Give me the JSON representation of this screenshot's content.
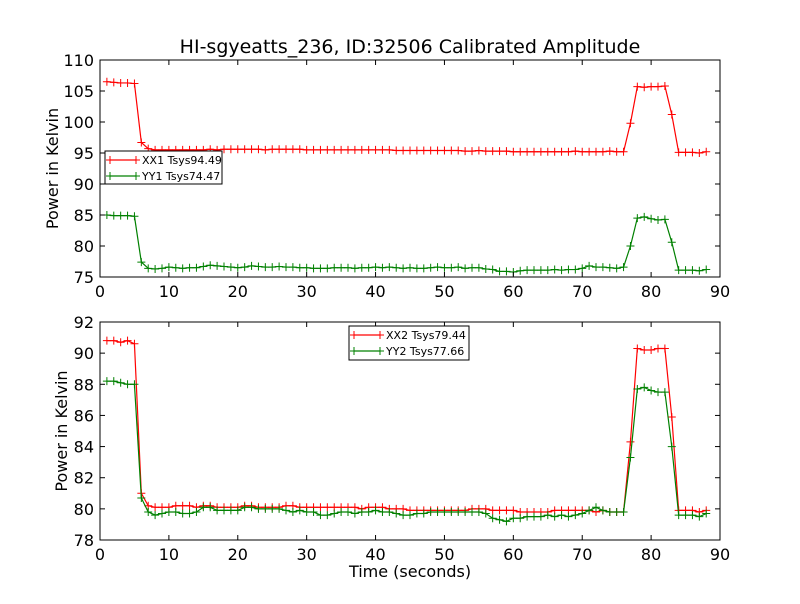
{
  "chart_data": {
    "title": "HI-sgyeatts_236, ID:32506 Calibrated Amplitude",
    "panels": [
      {
        "type": "line",
        "xlim": [
          0,
          90
        ],
        "ylim": [
          75,
          110
        ],
        "xticks": [
          0,
          10,
          20,
          30,
          40,
          50,
          60,
          70,
          80,
          90
        ],
        "yticks": [
          75,
          80,
          85,
          90,
          95,
          100,
          105,
          110
        ],
        "xlabel": "",
        "ylabel": "Power in Kelvin",
        "legend_position": "center-left",
        "grid": false,
        "x": [
          1,
          2,
          3,
          4,
          5,
          6,
          7,
          8,
          9,
          10,
          11,
          12,
          13,
          14,
          15,
          16,
          17,
          18,
          19,
          20,
          21,
          22,
          23,
          24,
          25,
          26,
          27,
          28,
          29,
          30,
          31,
          32,
          33,
          34,
          35,
          36,
          37,
          38,
          39,
          40,
          41,
          42,
          43,
          44,
          45,
          46,
          47,
          48,
          49,
          50,
          51,
          52,
          53,
          54,
          55,
          56,
          57,
          58,
          59,
          60,
          61,
          62,
          63,
          64,
          65,
          66,
          67,
          68,
          69,
          70,
          71,
          72,
          73,
          74,
          75,
          76,
          77,
          78,
          79,
          80,
          81,
          82,
          83,
          84,
          85,
          86,
          87,
          88
        ],
        "series": [
          {
            "name": "XX1 Tsys94.49",
            "color": "#ff0000",
            "values": [
              106.5,
              106.4,
              106.3,
              106.3,
              106.2,
              96.7,
              95.7,
              95.5,
              95.5,
              95.5,
              95.5,
              95.5,
              95.5,
              95.5,
              95.5,
              95.6,
              95.5,
              95.6,
              95.6,
              95.6,
              95.6,
              95.6,
              95.6,
              95.5,
              95.6,
              95.6,
              95.6,
              95.6,
              95.6,
              95.5,
              95.5,
              95.5,
              95.5,
              95.5,
              95.5,
              95.5,
              95.5,
              95.5,
              95.5,
              95.5,
              95.5,
              95.5,
              95.4,
              95.4,
              95.4,
              95.4,
              95.4,
              95.4,
              95.4,
              95.4,
              95.4,
              95.4,
              95.3,
              95.3,
              95.4,
              95.3,
              95.3,
              95.3,
              95.3,
              95.2,
              95.2,
              95.2,
              95.2,
              95.2,
              95.2,
              95.2,
              95.2,
              95.2,
              95.3,
              95.2,
              95.2,
              95.2,
              95.2,
              95.3,
              95.2,
              95.2,
              99.8,
              105.7,
              105.6,
              105.7,
              105.7,
              105.8,
              101.2,
              95.1,
              95.1,
              95.1,
              95.0,
              95.2
            ]
          },
          {
            "name": "YY1 Tsys74.47",
            "color": "#008000",
            "values": [
              85.0,
              84.9,
              84.9,
              84.9,
              84.8,
              77.4,
              76.4,
              76.3,
              76.4,
              76.6,
              76.5,
              76.4,
              76.5,
              76.5,
              76.7,
              76.9,
              76.8,
              76.7,
              76.6,
              76.5,
              76.6,
              76.8,
              76.7,
              76.6,
              76.6,
              76.7,
              76.6,
              76.6,
              76.5,
              76.5,
              76.4,
              76.4,
              76.4,
              76.5,
              76.5,
              76.5,
              76.4,
              76.5,
              76.5,
              76.6,
              76.5,
              76.6,
              76.5,
              76.4,
              76.5,
              76.4,
              76.4,
              76.5,
              76.6,
              76.5,
              76.5,
              76.6,
              76.4,
              76.5,
              76.5,
              76.3,
              76.2,
              75.9,
              75.9,
              75.8,
              76.0,
              76.1,
              76.1,
              76.1,
              76.1,
              76.2,
              76.1,
              76.2,
              76.2,
              76.4,
              76.8,
              76.6,
              76.6,
              76.5,
              76.4,
              76.6,
              80.0,
              84.5,
              84.7,
              84.4,
              84.2,
              84.3,
              80.6,
              76.1,
              76.1,
              76.1,
              76.0,
              76.2
            ]
          }
        ]
      },
      {
        "type": "line",
        "xlim": [
          0,
          90
        ],
        "ylim": [
          78,
          92
        ],
        "xticks": [
          0,
          10,
          20,
          30,
          40,
          50,
          60,
          70,
          80,
          90
        ],
        "yticks": [
          78,
          80,
          82,
          84,
          86,
          88,
          90,
          92
        ],
        "xlabel": "Time (seconds)",
        "ylabel": "Power in Kelvin",
        "legend_position": "upper-center",
        "grid": false,
        "x": [
          1,
          2,
          3,
          4,
          5,
          6,
          7,
          8,
          9,
          10,
          11,
          12,
          13,
          14,
          15,
          16,
          17,
          18,
          19,
          20,
          21,
          22,
          23,
          24,
          25,
          26,
          27,
          28,
          29,
          30,
          31,
          32,
          33,
          34,
          35,
          36,
          37,
          38,
          39,
          40,
          41,
          42,
          43,
          44,
          45,
          46,
          47,
          48,
          49,
          50,
          51,
          52,
          53,
          54,
          55,
          56,
          57,
          58,
          59,
          60,
          61,
          62,
          63,
          64,
          65,
          66,
          67,
          68,
          69,
          70,
          71,
          72,
          73,
          74,
          75,
          76,
          77,
          78,
          79,
          80,
          81,
          82,
          83,
          84,
          85,
          86,
          87,
          88
        ],
        "series": [
          {
            "name": "XX2 Tsys79.44",
            "color": "#ff0000",
            "values": [
              90.8,
              90.8,
              90.7,
              90.8,
              90.6,
              81.0,
              80.2,
              80.1,
              80.1,
              80.1,
              80.2,
              80.2,
              80.2,
              80.1,
              80.2,
              80.2,
              80.1,
              80.1,
              80.1,
              80.1,
              80.2,
              80.2,
              80.1,
              80.1,
              80.1,
              80.1,
              80.2,
              80.2,
              80.1,
              80.1,
              80.1,
              80.1,
              80.1,
              80.1,
              80.1,
              80.1,
              80.1,
              80.0,
              80.1,
              80.1,
              80.1,
              80.0,
              80.0,
              80.0,
              79.9,
              79.9,
              79.9,
              79.9,
              79.9,
              79.9,
              79.9,
              79.9,
              79.9,
              80.0,
              80.0,
              80.0,
              79.9,
              79.9,
              79.9,
              79.9,
              79.8,
              79.8,
              79.8,
              79.8,
              79.8,
              79.9,
              79.9,
              79.9,
              79.9,
              79.9,
              79.9,
              79.8,
              79.9,
              79.8,
              79.8,
              79.8,
              84.3,
              90.3,
              90.2,
              90.2,
              90.3,
              90.3,
              85.9,
              79.9,
              79.9,
              79.9,
              79.8,
              79.9
            ]
          },
          {
            "name": "YY2 Tsys77.66",
            "color": "#008000",
            "values": [
              88.2,
              88.2,
              88.1,
              88.0,
              88.0,
              80.7,
              79.8,
              79.6,
              79.7,
              79.8,
              79.8,
              79.7,
              79.7,
              79.8,
              80.1,
              80.1,
              79.9,
              79.9,
              79.9,
              79.9,
              80.1,
              80.1,
              80.0,
              80.0,
              80.0,
              80.0,
              79.9,
              79.8,
              79.9,
              79.8,
              79.8,
              79.6,
              79.6,
              79.7,
              79.8,
              79.8,
              79.7,
              79.8,
              79.8,
              79.9,
              79.8,
              79.8,
              79.7,
              79.6,
              79.6,
              79.7,
              79.7,
              79.8,
              79.8,
              79.8,
              79.8,
              79.8,
              79.8,
              79.8,
              79.8,
              79.7,
              79.4,
              79.3,
              79.2,
              79.4,
              79.4,
              79.5,
              79.5,
              79.5,
              79.6,
              79.5,
              79.6,
              79.5,
              79.6,
              79.7,
              79.9,
              80.1,
              79.9,
              79.8,
              79.8,
              79.8,
              83.3,
              87.7,
              87.8,
              87.6,
              87.5,
              87.5,
              84.0,
              79.6,
              79.6,
              79.6,
              79.5,
              79.7
            ]
          }
        ]
      }
    ]
  }
}
